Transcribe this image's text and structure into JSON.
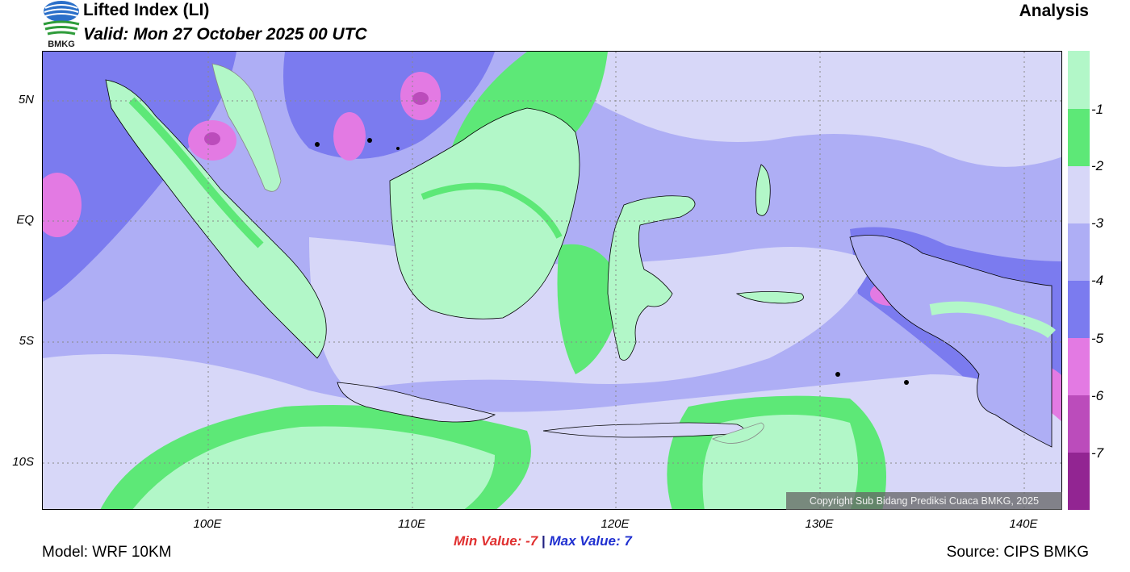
{
  "header": {
    "logo_text": "BMKG",
    "title": "Lifted Index (LI)",
    "valid": "Valid: Mon 27 October 2025 00 UTC",
    "analysis": "Analysis"
  },
  "axes": {
    "lat_ticks": [
      "5N",
      "EQ",
      "5S",
      "10S"
    ],
    "lon_ticks": [
      "100E",
      "110E",
      "120E",
      "130E",
      "140E"
    ]
  },
  "legend": {
    "labels": [
      "-1",
      "-2",
      "-3",
      "-4",
      "-5",
      "-6",
      "-7"
    ],
    "colors": [
      "#b2f7c8",
      "#5de877",
      "#d7d7f8",
      "#aeaef5",
      "#7b7bef",
      "#e37ae3",
      "#bb4cbb",
      "#922592"
    ]
  },
  "footer": {
    "copyright": "Copyright Sub Bidang Prediksi Cuaca BMKG, 2025",
    "min_label": "Min Value:  -7",
    "separator": "|",
    "max_label": "Max Value:   7",
    "model": "Model: WRF 10KM",
    "source": "Source: CIPS BMKG"
  }
}
